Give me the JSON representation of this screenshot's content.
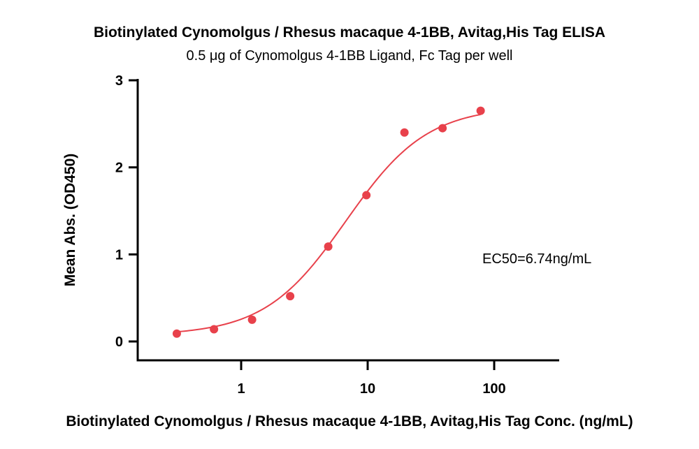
{
  "chart_data": {
    "type": "scatter",
    "title": "Biotinylated Cynomolgus / Rhesus macaque 4-1BB, Avitag,His Tag ELISA",
    "subtitle": "0.5 μg of Cynomolgus 4-1BB Ligand, Fc Tag per well",
    "xlabel": "Biotinylated Cynomolgus / Rhesus macaque 4-1BB, Avitag,His Tag Conc. (ng/mL)",
    "ylabel": "Mean Abs. (OD450)",
    "x_scale": "log",
    "xlim": [
      0.2,
      200
    ],
    "ylim": [
      0,
      3
    ],
    "x_ticks": [
      {
        "value": 1,
        "label": "1"
      },
      {
        "value": 10,
        "label": "10"
      },
      {
        "value": 100,
        "label": "100"
      }
    ],
    "y_ticks": [
      {
        "value": 0,
        "label": "0"
      },
      {
        "value": 1,
        "label": "1"
      },
      {
        "value": 2,
        "label": "2"
      },
      {
        "value": 3,
        "label": "3"
      }
    ],
    "grid": false,
    "legend": "none",
    "color": "#e8414b",
    "series": [
      {
        "points": [
          {
            "x": 0.31,
            "y": 0.09
          },
          {
            "x": 0.61,
            "y": 0.14
          },
          {
            "x": 1.22,
            "y": 0.25
          },
          {
            "x": 2.44,
            "y": 0.52
          },
          {
            "x": 4.88,
            "y": 1.09
          },
          {
            "x": 9.77,
            "y": 1.68
          },
          {
            "x": 19.53,
            "y": 2.4
          },
          {
            "x": 39.06,
            "y": 2.45
          },
          {
            "x": 78.13,
            "y": 2.65
          }
        ]
      }
    ],
    "fit": {
      "model": "4PL",
      "bottom": 0.07,
      "top": 2.7,
      "ec50": 6.74,
      "hill": 1.35
    },
    "annotation": "EC50=6.74ng/mL"
  }
}
